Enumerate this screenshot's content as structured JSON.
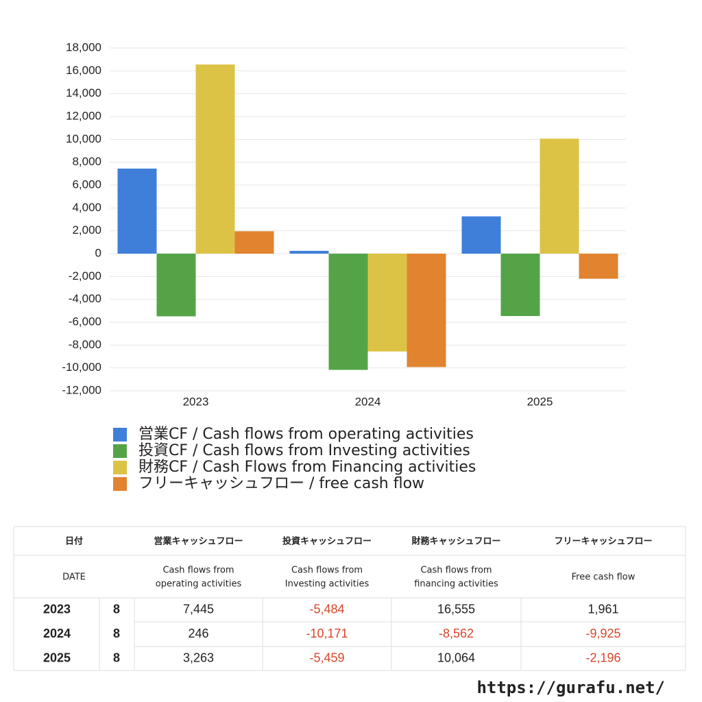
{
  "chart_data": {
    "type": "bar",
    "categories": [
      "2023",
      "2024",
      "2025"
    ],
    "series": [
      {
        "name": "営業CF / Cash flows from operating activities",
        "color": "#3f7fd9",
        "values": [
          7445,
          246,
          3263
        ]
      },
      {
        "name": "投資CF / Cash flows from Investing activities",
        "color": "#54a447",
        "values": [
          -5484,
          -10171,
          -5459
        ]
      },
      {
        "name": "財務CF / Cash Flows from Financing activities",
        "color": "#dcc346",
        "values": [
          16555,
          -8562,
          10064
        ]
      },
      {
        "name": "フリーキャッシュフロー / free cash flow",
        "color": "#e2832f",
        "values": [
          1961,
          -9925,
          -2196
        ]
      }
    ],
    "ylim": [
      -12000,
      18000
    ],
    "yticks": [
      {
        "value": -12000,
        "label": "-12,000"
      },
      {
        "value": -10000,
        "label": "-10,000"
      },
      {
        "value": -8000,
        "label": "-8,000"
      },
      {
        "value": -6000,
        "label": "-6,000"
      },
      {
        "value": -4000,
        "label": "-4,000"
      },
      {
        "value": -2000,
        "label": "-2,000"
      },
      0,
      {
        "value": 2000,
        "label": "2,000"
      },
      {
        "value": 4000,
        "label": "4,000"
      },
      {
        "value": 6000,
        "label": "6,000"
      },
      {
        "value": 8000,
        "label": "8,000"
      },
      {
        "value": 10000,
        "label": "10,000"
      },
      {
        "value": 12000,
        "label": "12,000"
      },
      {
        "value": 14000,
        "label": "14,000"
      },
      {
        "value": 16000,
        "label": "16,000"
      },
      {
        "value": 18000,
        "label": "18,000"
      }
    ],
    "grid": true
  },
  "table": {
    "columns": [
      {
        "ja": "日付",
        "en": [
          "DATE"
        ]
      },
      {
        "ja": "営業キャッシュフロー",
        "en": [
          "Cash flows from",
          "operating activities"
        ]
      },
      {
        "ja": "投資キャッシュフロー",
        "en": [
          "Cash flows from",
          "Investing activities"
        ]
      },
      {
        "ja": "財務キャッシュフロー",
        "en": [
          "Cash flows from",
          "financing activities"
        ]
      },
      {
        "ja": "フリーキャッシュフロー",
        "en": [
          "Free cash flow"
        ]
      }
    ],
    "rows": [
      [
        "2023",
        "8",
        "7,445",
        "-5,484",
        "16,555",
        "1,961"
      ],
      [
        "2024",
        "8",
        "246",
        "-10,171",
        "-8,562",
        "-9,925"
      ],
      [
        "2025",
        "8",
        "3,263",
        "-5,459",
        "10,064",
        "-2,196"
      ]
    ]
  },
  "footer": {
    "url": "https://gurafu.net/"
  }
}
